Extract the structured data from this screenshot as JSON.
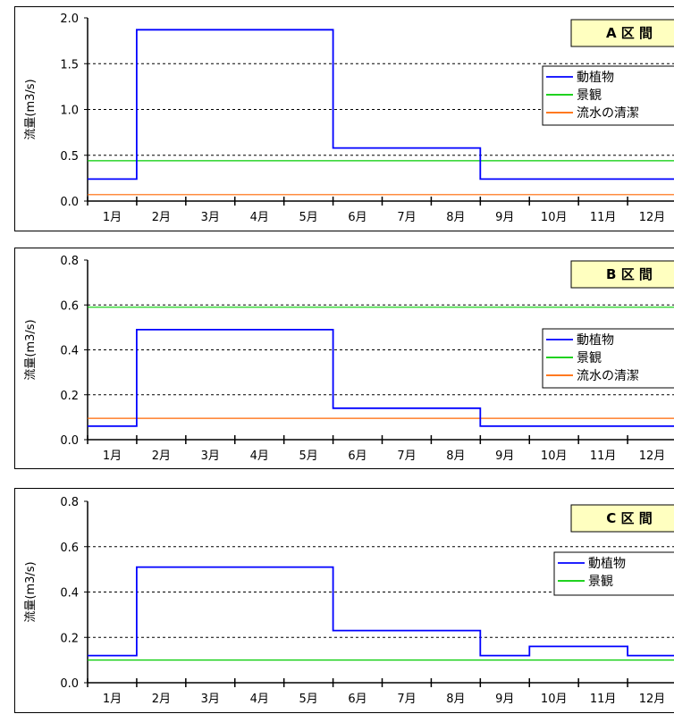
{
  "chart_data": [
    {
      "type": "line",
      "title": "A 区 間",
      "ylabel": "流量(m3/s)",
      "ylim": [
        0,
        2.0
      ],
      "yticks": [
        "0.0",
        "0.5",
        "1.0",
        "1.5",
        "2.0"
      ],
      "categories": [
        "1月",
        "2月",
        "3月",
        "4月",
        "5月",
        "6月",
        "7月",
        "8月",
        "9月",
        "10月",
        "11月",
        "12月"
      ],
      "legend": [
        "動植物",
        "景観",
        "流水の清潔"
      ],
      "series": [
        {
          "name": "動植物",
          "color": "#0000ff",
          "values": [
            0.24,
            1.87,
            1.87,
            1.87,
            1.87,
            0.58,
            0.58,
            0.58,
            0.24,
            0.24,
            0.24,
            0.24
          ]
        },
        {
          "name": "景観",
          "color": "#00cc00",
          "values": [
            0.44,
            0.44,
            0.44,
            0.44,
            0.44,
            0.44,
            0.44,
            0.44,
            0.44,
            0.44,
            0.44,
            0.44
          ]
        },
        {
          "name": "流水の清潔",
          "color": "#ff6600",
          "values": [
            0.07,
            0.07,
            0.07,
            0.07,
            0.07,
            0.07,
            0.07,
            0.07,
            0.07,
            0.07,
            0.07,
            0.07
          ]
        }
      ]
    },
    {
      "type": "line",
      "title": "B 区 間",
      "ylabel": "流量(m3/s)",
      "ylim": [
        0,
        0.8
      ],
      "yticks": [
        "0.0",
        "0.2",
        "0.4",
        "0.6",
        "0.8"
      ],
      "categories": [
        "1月",
        "2月",
        "3月",
        "4月",
        "5月",
        "6月",
        "7月",
        "8月",
        "9月",
        "10月",
        "11月",
        "12月"
      ],
      "legend": [
        "動植物",
        "景観",
        "流水の清潔"
      ],
      "series": [
        {
          "name": "動植物",
          "color": "#0000ff",
          "values": [
            0.06,
            0.49,
            0.49,
            0.49,
            0.49,
            0.14,
            0.14,
            0.14,
            0.06,
            0.06,
            0.06,
            0.06
          ]
        },
        {
          "name": "景観",
          "color": "#00cc00",
          "values": [
            0.59,
            0.59,
            0.59,
            0.59,
            0.59,
            0.59,
            0.59,
            0.59,
            0.59,
            0.59,
            0.59,
            0.59
          ]
        },
        {
          "name": "流水の清潔",
          "color": "#ff6600",
          "values": [
            0.095,
            0.095,
            0.095,
            0.095,
            0.095,
            0.095,
            0.095,
            0.095,
            0.095,
            0.095,
            0.095,
            0.095
          ]
        }
      ]
    },
    {
      "type": "line",
      "title": "C 区 間",
      "ylabel": "流量(m3/s)",
      "ylim": [
        0,
        0.8
      ],
      "yticks": [
        "0.0",
        "0.2",
        "0.4",
        "0.6",
        "0.8"
      ],
      "categories": [
        "1月",
        "2月",
        "3月",
        "4月",
        "5月",
        "6月",
        "7月",
        "8月",
        "9月",
        "10月",
        "11月",
        "12月"
      ],
      "legend": [
        "動植物",
        "景観"
      ],
      "series": [
        {
          "name": "動植物",
          "color": "#0000ff",
          "values": [
            0.12,
            0.51,
            0.51,
            0.51,
            0.51,
            0.23,
            0.23,
            0.23,
            0.12,
            0.16,
            0.16,
            0.12
          ]
        },
        {
          "name": "景観",
          "color": "#00cc00",
          "values": [
            0.1,
            0.1,
            0.1,
            0.1,
            0.1,
            0.1,
            0.1,
            0.1,
            0.1,
            0.1,
            0.1,
            0.1
          ]
        }
      ]
    }
  ]
}
